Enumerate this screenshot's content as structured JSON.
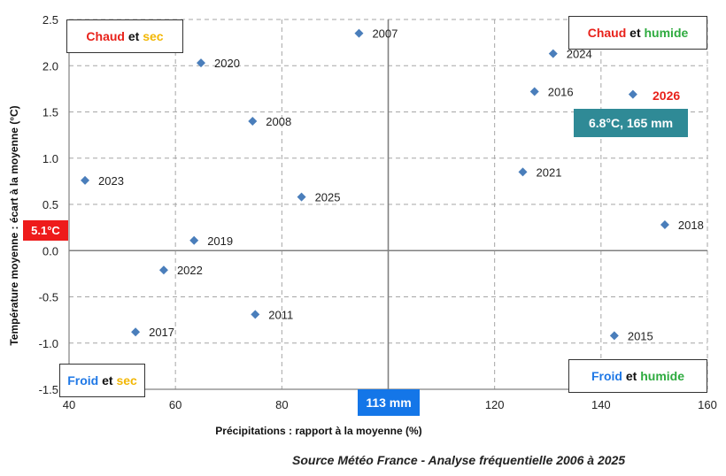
{
  "colors": {
    "marker": "#4a7ebb",
    "hot": "#e8221b",
    "cold": "#1f78e6",
    "dry": "#f2b705",
    "wet": "#2eab3f",
    "ref_y_bg": "#ee1b1b",
    "ref_x_bg": "#1476e8",
    "highlight_bg": "#2f8a96",
    "grid": "#a6a6a6",
    "ref_line": "#808080"
  },
  "quadrants": {
    "top_left": {
      "w1": "Chaud",
      "mid": "et",
      "w2": "sec"
    },
    "top_right": {
      "w1": "Chaud",
      "mid": "et",
      "w2": "humide"
    },
    "bottom_left": {
      "w1": "Froid",
      "mid": "et",
      "w2": "sec"
    },
    "bottom_right": {
      "w1": "Froid",
      "mid": "et",
      "w2": "humide"
    }
  },
  "reference": {
    "y_label": "5.1°C",
    "x_label": "113 mm"
  },
  "highlight": {
    "label": "2026",
    "value_label": "6.8°C, 165 mm"
  },
  "source": "Source Météo France - Analyse fréquentielle 2006 à 2025",
  "chart_data": {
    "type": "scatter",
    "xlabel": "Précipitations : rapport à la moyenne (%)",
    "ylabel": "Température moyenne : écart à la moyenne (°C)",
    "xlim": [
      40,
      160
    ],
    "ylim": [
      -1.5,
      2.5
    ],
    "x_ticks": [
      40,
      60,
      80,
      100,
      120,
      140,
      160
    ],
    "y_ticks": [
      -1.5,
      -1.0,
      -0.5,
      0.0,
      0.5,
      1.0,
      1.5,
      2.0,
      2.5
    ],
    "y_tick_labels": [
      "-1.5",
      "-1.0",
      "-0.5",
      "0.0",
      "0.5",
      "1.0",
      "1.5",
      "2.0",
      "2.5"
    ],
    "x_reference": 100,
    "y_reference": 0.0,
    "points": [
      {
        "label": "2007",
        "x": 94.5,
        "y": 2.35
      },
      {
        "label": "2020",
        "x": 64.8,
        "y": 2.03
      },
      {
        "label": "2024",
        "x": 131.0,
        "y": 2.13
      },
      {
        "label": "2016",
        "x": 127.5,
        "y": 1.72
      },
      {
        "label": "2026",
        "x": 146.0,
        "y": 1.69
      },
      {
        "label": "2008",
        "x": 74.5,
        "y": 1.4
      },
      {
        "label": "2021",
        "x": 125.3,
        "y": 0.85
      },
      {
        "label": "2023",
        "x": 43.0,
        "y": 0.76
      },
      {
        "label": "2025",
        "x": 83.7,
        "y": 0.58
      },
      {
        "label": "2018",
        "x": 152.0,
        "y": 0.28
      },
      {
        "label": "2019",
        "x": 63.5,
        "y": 0.11
      },
      {
        "label": "2022",
        "x": 57.8,
        "y": -0.21
      },
      {
        "label": "2011",
        "x": 75.0,
        "y": -0.69
      },
      {
        "label": "2017",
        "x": 52.5,
        "y": -0.88
      },
      {
        "label": "2015",
        "x": 142.5,
        "y": -0.92
      }
    ]
  }
}
